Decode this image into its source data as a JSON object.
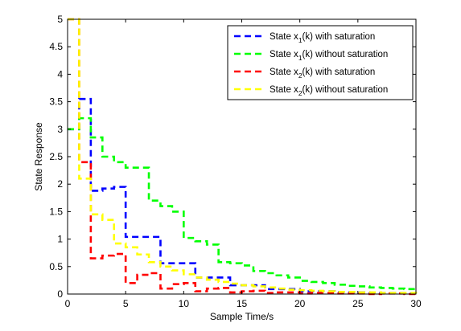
{
  "chart_data": {
    "type": "line",
    "step": true,
    "xlabel": "Sample Time/s",
    "ylabel": "State Response",
    "xlim": [
      0,
      30
    ],
    "ylim": [
      0,
      5
    ],
    "xticks": [
      0,
      5,
      10,
      15,
      20,
      25,
      30
    ],
    "yticks": [
      0,
      0.5,
      1,
      1.5,
      2,
      2.5,
      3,
      3.5,
      4,
      4.5,
      5
    ],
    "ytick_labels": [
      "0",
      "0.5",
      "1",
      "1.5",
      "2",
      "2.5",
      "3",
      "3.5",
      "4",
      "4.5",
      "5"
    ],
    "grid": false,
    "legend_position": "top-right",
    "series": [
      {
        "name_main": "State x",
        "name_sub": "1",
        "name_rest": "(k) with saturation",
        "color": "#0000ff",
        "values": [
          3.0,
          3.55,
          1.88,
          1.92,
          1.95,
          1.04,
          1.04,
          1.04,
          0.56,
          0.56,
          0.56,
          0.3,
          0.3,
          0.3,
          0.16,
          0.16,
          0.16,
          0.09,
          0.09,
          0.09,
          0.05,
          0.05,
          0.05,
          0.03,
          0.03,
          0.03,
          0.02,
          0.02,
          0.02,
          0.01,
          0.01
        ]
      },
      {
        "name_main": "State x",
        "name_sub": "1",
        "name_rest": "(k) without saturation",
        "color": "#00ff00",
        "values": [
          3.0,
          3.2,
          2.85,
          2.5,
          2.4,
          2.3,
          2.3,
          1.7,
          1.6,
          1.5,
          1.02,
          0.96,
          0.9,
          0.58,
          0.56,
          0.52,
          0.42,
          0.38,
          0.34,
          0.3,
          0.24,
          0.22,
          0.2,
          0.17,
          0.15,
          0.14,
          0.12,
          0.11,
          0.1,
          0.09,
          0.08
        ]
      },
      {
        "name_main": "State x",
        "name_sub": "2",
        "name_rest": "(k) with saturation",
        "color": "#ff0000",
        "values": [
          5.0,
          2.4,
          0.65,
          0.7,
          0.73,
          0.2,
          0.35,
          0.38,
          0.1,
          0.18,
          0.2,
          0.05,
          0.1,
          0.11,
          0.03,
          0.05,
          0.06,
          0.02,
          0.03,
          0.03,
          0.01,
          0.02,
          0.02,
          0.01,
          0.01,
          0.01,
          0.0,
          0.01,
          0.01,
          0.0,
          0.0
        ]
      },
      {
        "name_main": "State x",
        "name_sub": "2",
        "name_rest": "(k) without saturation",
        "color": "#ffff00",
        "values": [
          5.0,
          2.1,
          1.45,
          1.35,
          0.92,
          0.85,
          0.72,
          0.58,
          0.5,
          0.43,
          0.36,
          0.3,
          0.26,
          0.22,
          0.19,
          0.16,
          0.14,
          0.12,
          0.1,
          0.08,
          0.07,
          0.06,
          0.05,
          0.04,
          0.04,
          0.03,
          0.03,
          0.02,
          0.02,
          0.02,
          0.01
        ]
      }
    ]
  }
}
